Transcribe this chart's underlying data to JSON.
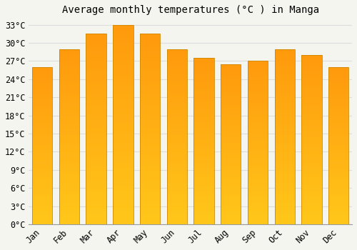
{
  "months": [
    "Jan",
    "Feb",
    "Mar",
    "Apr",
    "May",
    "Jun",
    "Jul",
    "Aug",
    "Sep",
    "Oct",
    "Nov",
    "Dec"
  ],
  "values": [
    26.0,
    29.0,
    31.5,
    33.0,
    31.5,
    29.0,
    27.5,
    26.5,
    27.0,
    29.0,
    28.0,
    26.0
  ],
  "bar_color_bottom": "#FFB300",
  "bar_color_top": "#FFA020",
  "bar_edge_color": "#CC8800",
  "title": "Average monthly temperatures (°C ) in Manga",
  "ylim": [
    0,
    34
  ],
  "yticks": [
    0,
    3,
    6,
    9,
    12,
    15,
    18,
    21,
    24,
    27,
    30,
    33
  ],
  "background_color": "#f5f5f0",
  "plot_bg_color": "#f5f5f0",
  "grid_color": "#dddddd",
  "title_fontsize": 10,
  "tick_fontsize": 8.5
}
